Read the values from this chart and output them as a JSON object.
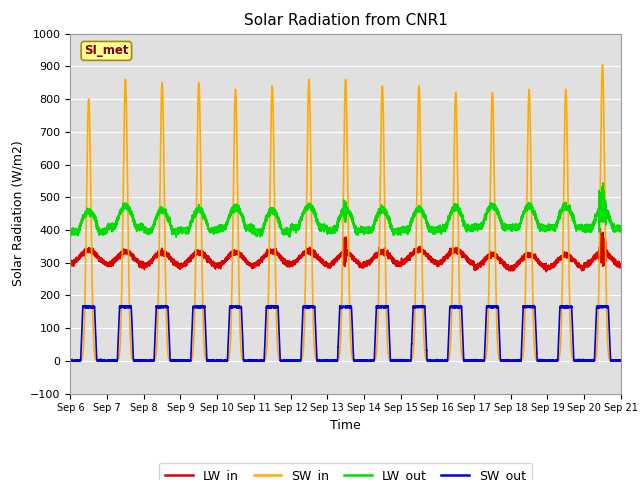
{
  "title": "Solar Radiation from CNR1",
  "xlabel": "Time",
  "ylabel": "Solar Radiation (W/m2)",
  "ylim": [
    -100,
    1000
  ],
  "yticks": [
    -100,
    0,
    100,
    200,
    300,
    400,
    500,
    600,
    700,
    800,
    900,
    1000
  ],
  "legend_label": "SI_met",
  "colors": {
    "LW_in": "#dd0000",
    "SW_in": "#ffaa00",
    "LW_out": "#00dd00",
    "SW_out": "#0000dd"
  },
  "bg_color": "#e0e0e0",
  "n_days": 15,
  "start_day": 6,
  "points_per_day": 480,
  "lw_in_base": 310,
  "lw_out_base": 400,
  "sw_in_peaks": [
    800,
    860,
    850,
    850,
    830,
    840,
    860,
    860,
    840,
    840,
    820,
    820,
    830,
    830,
    905
  ],
  "sw_out_peak": 165,
  "label_box_color": "#ffff99",
  "label_box_edge": "#aa8800",
  "linewidth": 1.2,
  "figsize": [
    6.4,
    4.8
  ],
  "dpi": 100
}
